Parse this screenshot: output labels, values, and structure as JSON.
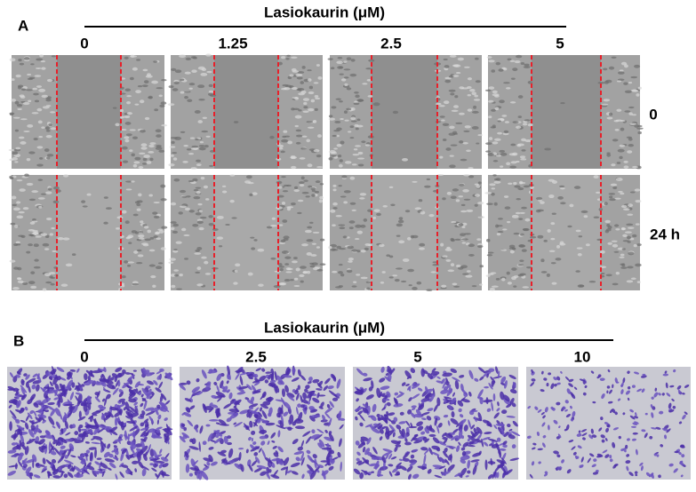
{
  "panel_a": {
    "label": "A",
    "title": "Lasiokaurin (μM)",
    "columns": [
      "0",
      "1.25",
      "2.5",
      "5"
    ],
    "rows": [
      "0",
      "24 h"
    ]
  },
  "panel_b": {
    "label": "B",
    "title": "Lasiokaurin (μM)",
    "columns": [
      "0",
      "2.5",
      "5",
      "10"
    ]
  }
}
